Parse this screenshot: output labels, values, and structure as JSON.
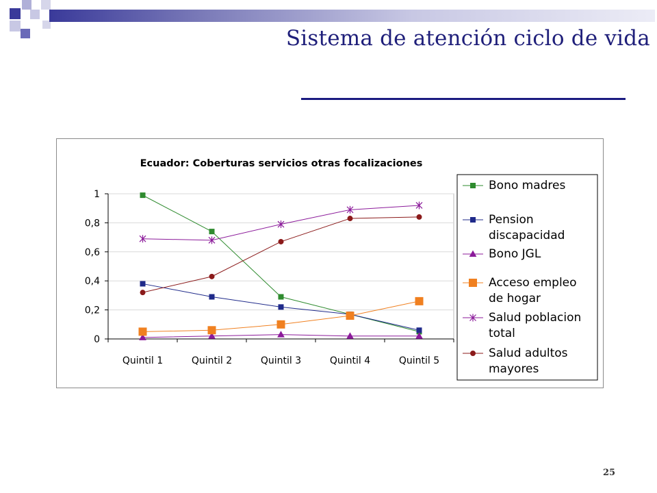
{
  "slide": {
    "title": "Sistema de atención ciclo de vida",
    "page_number": "25"
  },
  "colors": {
    "title": "#1f1f7a",
    "underline": "#1a1a80",
    "deco_dark": "#3a3a9a",
    "deco_light": "#b0b0d8"
  },
  "chart_data": {
    "type": "line",
    "title": "Ecuador: Coberturas servicios otras focalizaciones",
    "xlabel": "",
    "ylabel": "",
    "categories": [
      "Quintil 1",
      "Quintil 2",
      "Quintil 3",
      "Quintil 4",
      "Quintil 5"
    ],
    "ylim": [
      0,
      1
    ],
    "yticks": [
      "0",
      "0,2",
      "0,4",
      "0,6",
      "0,8",
      "1"
    ],
    "grid": true,
    "legend_position": "right",
    "series": [
      {
        "name": "Bono madres",
        "values": [
          0.99,
          0.74,
          0.29,
          0.17,
          0.05
        ],
        "color": "#2e8b2e",
        "marker": "square"
      },
      {
        "name": "Pension discapacidad",
        "values": [
          0.38,
          0.29,
          0.22,
          0.17,
          0.06
        ],
        "color": "#1f2a8a",
        "marker": "square"
      },
      {
        "name": "Bono JGL",
        "values": [
          0.01,
          0.02,
          0.03,
          0.02,
          0.02
        ],
        "color": "#8b1a9a",
        "marker": "triangle"
      },
      {
        "name": "Acceso empleo de hogar",
        "values": [
          0.05,
          0.06,
          0.1,
          0.16,
          0.26
        ],
        "color": "#f08020",
        "marker": "big-square"
      },
      {
        "name": "Salud poblacion total",
        "values": [
          0.69,
          0.68,
          0.79,
          0.89,
          0.92
        ],
        "color": "#8b1a9a",
        "marker": "star"
      },
      {
        "name": "Salud adultos mayores",
        "values": [
          0.32,
          0.43,
          0.67,
          0.83,
          0.84
        ],
        "color": "#8b1a1a",
        "marker": "circle"
      }
    ],
    "legend_lines": [
      [
        "Bono madres"
      ],
      [
        "Pension",
        "discapacidad"
      ],
      [
        "Bono JGL"
      ],
      [
        "Acceso empleo",
        "de hogar"
      ],
      [
        "Salud poblacion",
        "total"
      ],
      [
        "Salud adultos",
        "mayores"
      ]
    ]
  }
}
